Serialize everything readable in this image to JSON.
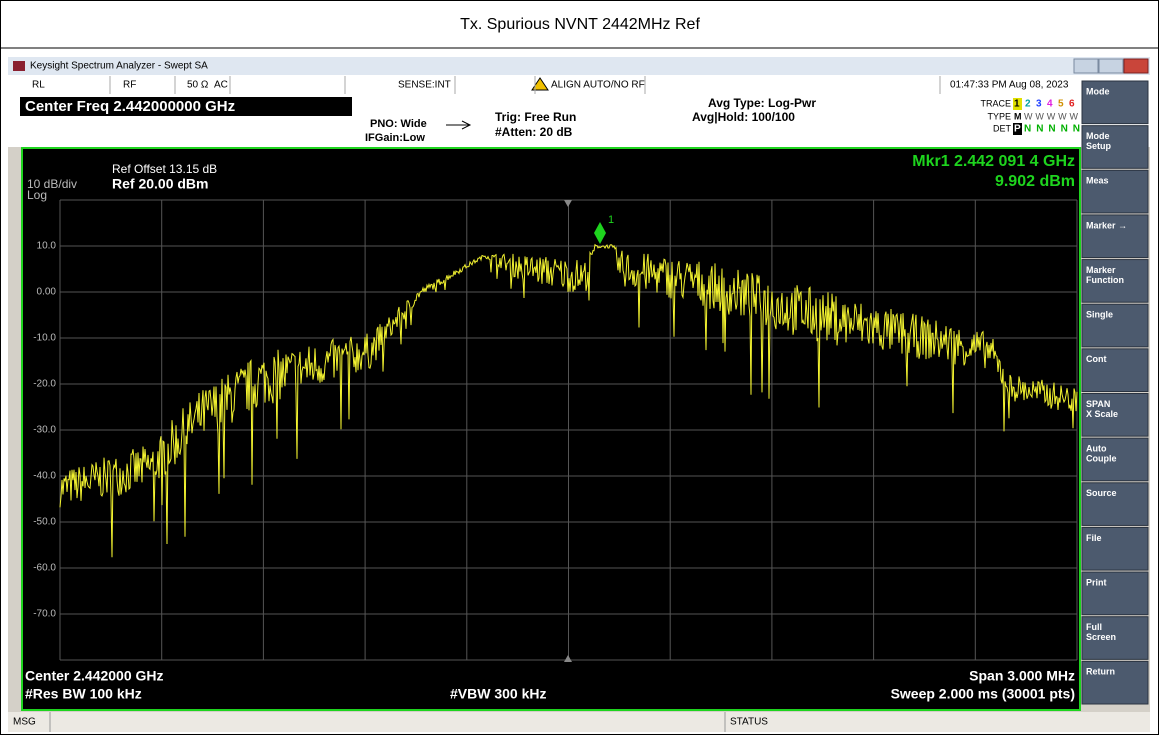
{
  "report_title": "Tx. Spurious NVNT 2442MHz Ref",
  "window_title": "Keysight Spectrum Analyzer - Swept SA",
  "toolbar": {
    "rl": "RL",
    "rf": "RF",
    "impedance": "50 Ω",
    "coupling": "AC",
    "sense": "SENSE:INT",
    "align": "ALIGN AUTO/NO RF",
    "datetime": "01:47:33 PM Aug 08, 2023"
  },
  "settings": {
    "center_freq": "Center Freq 2.442000000 GHz",
    "pno": "PNO: Wide",
    "ifgain": "IFGain:Low",
    "trig": "Trig: Free Run",
    "atten": "#Atten: 20 dB",
    "avg_type": "Avg Type: Log-Pwr",
    "avg_hold": "Avg|Hold: 100/100",
    "trace_label": "TRACE",
    "trace_numbers": [
      "1",
      "2",
      "3",
      "4",
      "5",
      "6"
    ],
    "type_label": "TYPE",
    "type_values": [
      "M",
      "WWWWW"
    ],
    "det_label": "DET",
    "det_values": [
      "P",
      "NNNNN"
    ]
  },
  "display": {
    "ref_offset": "Ref Offset 13.15 dB",
    "scale": "10 dB/div",
    "ref_level": "Ref 20.00 dBm",
    "log": "Log",
    "marker_freq": "Mkr1 2.442 091 4 GHz",
    "marker_level": "9.902 dBm",
    "marker_id": "1",
    "y_labels": [
      "10.0",
      "0.00",
      "-10.0",
      "-20.0",
      "-30.0",
      "-40.0",
      "-50.0",
      "-60.0",
      "-70.0"
    ],
    "center": "Center 2.442000 GHz",
    "res_bw": "#Res BW 100 kHz",
    "vbw": "#VBW 300 kHz",
    "span": "Span 3.000 MHz",
    "sweep": "Sweep  2.000 ms (30001 pts)"
  },
  "softkeys": [
    [
      "Mode"
    ],
    [
      "Mode",
      "Setup"
    ],
    [
      "Meas"
    ],
    [
      "Marker →"
    ],
    [
      "Marker",
      "Function"
    ],
    [
      "Single"
    ],
    [
      "Cont"
    ],
    [
      "SPAN",
      "X Scale"
    ],
    [
      "Auto",
      "Couple"
    ],
    [
      "Source"
    ],
    [
      "File"
    ],
    [
      "Print"
    ],
    [
      "Full",
      "Screen"
    ],
    [
      "Return"
    ]
  ],
  "status_bar": {
    "msg": "MSG",
    "status": "STATUS"
  }
}
